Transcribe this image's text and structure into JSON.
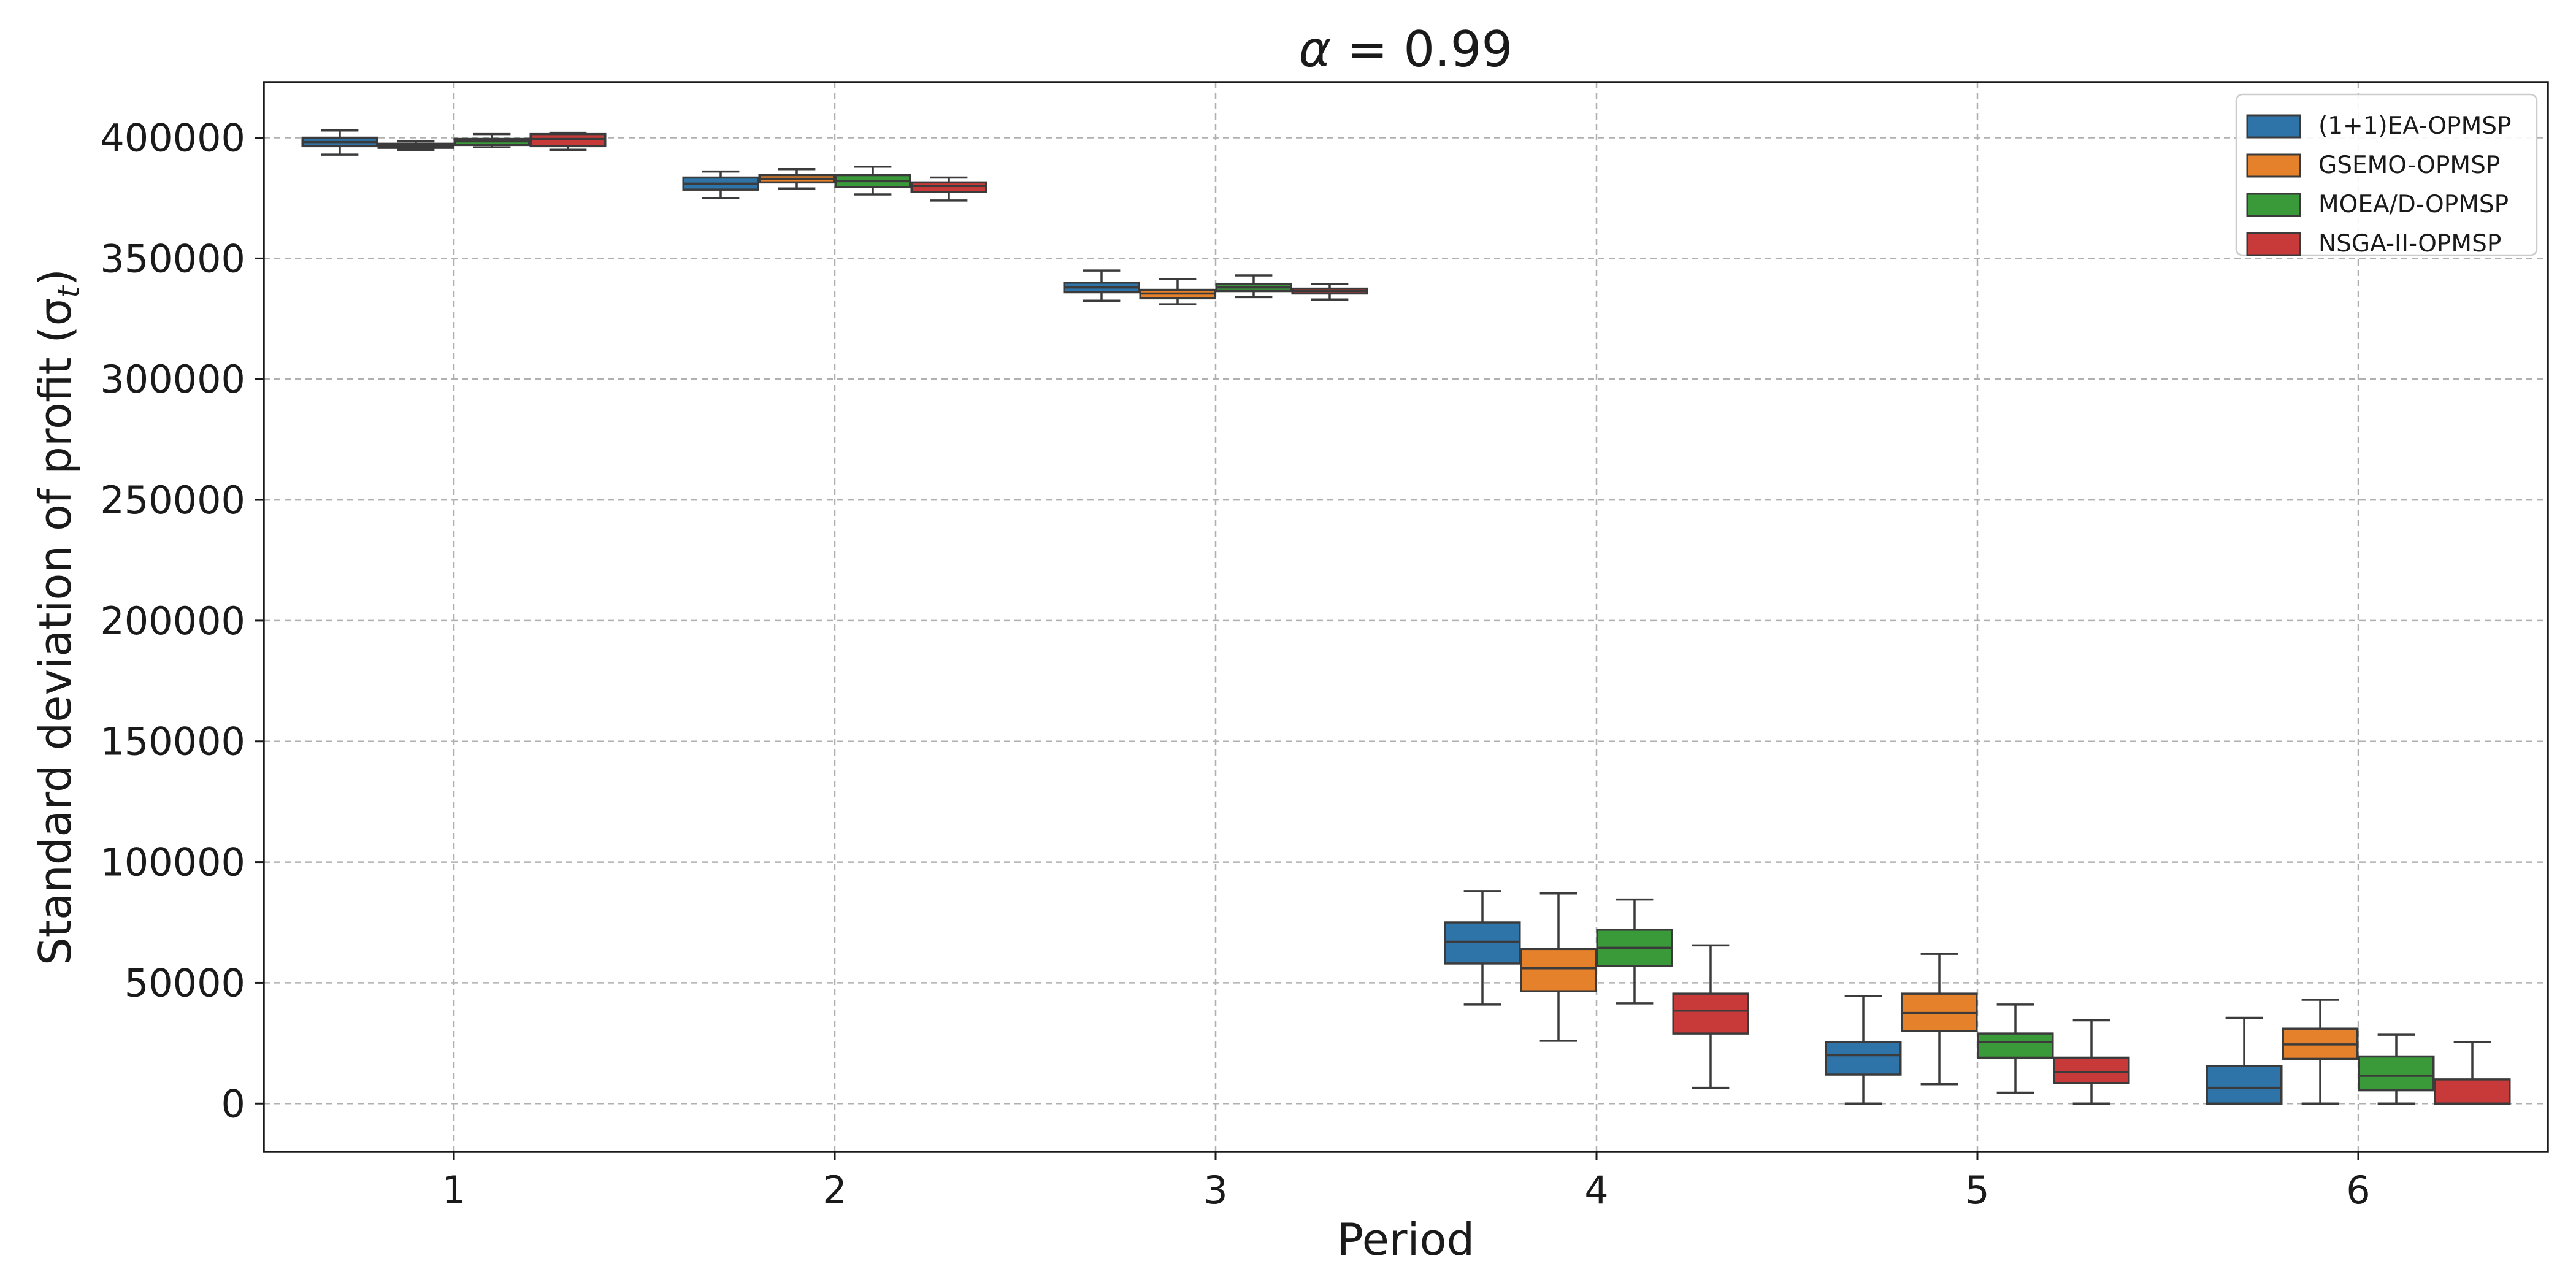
{
  "chart_data": {
    "type": "box",
    "title_prefix": "α",
    "title_suffix": " = 0.99",
    "xlabel": "Period",
    "ylabel_prefix": "Standard deviation of profit (σ",
    "ylabel_subscript": "t",
    "ylabel_suffix": ")",
    "categories": [
      "1",
      "2",
      "3",
      "4",
      "5",
      "6"
    ],
    "ylim": [
      -20000,
      423000
    ],
    "yticks": [
      0,
      50000,
      100000,
      150000,
      200000,
      250000,
      300000,
      350000,
      400000
    ],
    "ytick_labels": [
      "0",
      "50000",
      "100000",
      "150000",
      "200000",
      "250000",
      "300000",
      "350000",
      "400000"
    ],
    "grid": true,
    "legend_position": "top-right",
    "series": [
      {
        "name": "(1+1)EA-OPMSP",
        "color": "#2e74a8",
        "boxes": [
          {
            "whisker_low": 393000,
            "q1": 396500,
            "median": 398200,
            "q3": 400000,
            "whisker_high": 403000
          },
          {
            "whisker_low": 375000,
            "q1": 378500,
            "median": 381000,
            "q3": 383500,
            "whisker_high": 386000
          },
          {
            "whisker_low": 332500,
            "q1": 336000,
            "median": 338000,
            "q3": 340000,
            "whisker_high": 345000
          },
          {
            "whisker_low": 41000,
            "q1": 58000,
            "median": 67000,
            "q3": 75000,
            "whisker_high": 88000
          },
          {
            "whisker_low": 0,
            "q1": 12000,
            "median": 20000,
            "q3": 25500,
            "whisker_high": 44500
          },
          {
            "whisker_low": 0,
            "q1": 0,
            "median": 6500,
            "q3": 15500,
            "whisker_high": 35500
          }
        ]
      },
      {
        "name": "GSEMO-OPMSP",
        "color": "#e5812a",
        "boxes": [
          {
            "whisker_low": 395000,
            "q1": 395800,
            "median": 396500,
            "q3": 397500,
            "whisker_high": 398500
          },
          {
            "whisker_low": 379000,
            "q1": 381500,
            "median": 383000,
            "q3": 384500,
            "whisker_high": 387000
          },
          {
            "whisker_low": 331000,
            "q1": 333500,
            "median": 335500,
            "q3": 337000,
            "whisker_high": 341500
          },
          {
            "whisker_low": 26000,
            "q1": 46500,
            "median": 56000,
            "q3": 64000,
            "whisker_high": 87000
          },
          {
            "whisker_low": 8000,
            "q1": 30000,
            "median": 37500,
            "q3": 45500,
            "whisker_high": 62000
          },
          {
            "whisker_low": 0,
            "q1": 18500,
            "median": 24500,
            "q3": 31000,
            "whisker_high": 43000
          }
        ]
      },
      {
        "name": "MOEA/D-OPMSP",
        "color": "#3a9a3a",
        "boxes": [
          {
            "whisker_low": 396000,
            "q1": 397000,
            "median": 398500,
            "q3": 399500,
            "whisker_high": 401500
          },
          {
            "whisker_low": 376500,
            "q1": 379500,
            "median": 382000,
            "q3": 384500,
            "whisker_high": 388000
          },
          {
            "whisker_low": 334000,
            "q1": 336500,
            "median": 338000,
            "q3": 339500,
            "whisker_high": 343000
          },
          {
            "whisker_low": 41500,
            "q1": 57000,
            "median": 64500,
            "q3": 72000,
            "whisker_high": 84500
          },
          {
            "whisker_low": 4500,
            "q1": 19000,
            "median": 25500,
            "q3": 29000,
            "whisker_high": 41000
          },
          {
            "whisker_low": 0,
            "q1": 5500,
            "median": 11500,
            "q3": 19500,
            "whisker_high": 28500
          }
        ]
      },
      {
        "name": "NSGA-II-OPMSP",
        "color": "#c83a3a",
        "boxes": [
          {
            "whisker_low": 395000,
            "q1": 396500,
            "median": 399500,
            "q3": 401500,
            "whisker_high": 402000
          },
          {
            "whisker_low": 374000,
            "q1": 377500,
            "median": 380000,
            "q3": 381500,
            "whisker_high": 383500
          },
          {
            "whisker_low": 333000,
            "q1": 335500,
            "median": 336500,
            "q3": 337500,
            "whisker_high": 339500
          },
          {
            "whisker_low": 6500,
            "q1": 29000,
            "median": 38500,
            "q3": 45500,
            "whisker_high": 65500
          },
          {
            "whisker_low": 0,
            "q1": 8500,
            "median": 13000,
            "q3": 19000,
            "whisker_high": 34500
          },
          {
            "whisker_low": 0,
            "q1": 0,
            "median": 0,
            "q3": 10000,
            "whisker_high": 25500
          }
        ]
      }
    ]
  }
}
